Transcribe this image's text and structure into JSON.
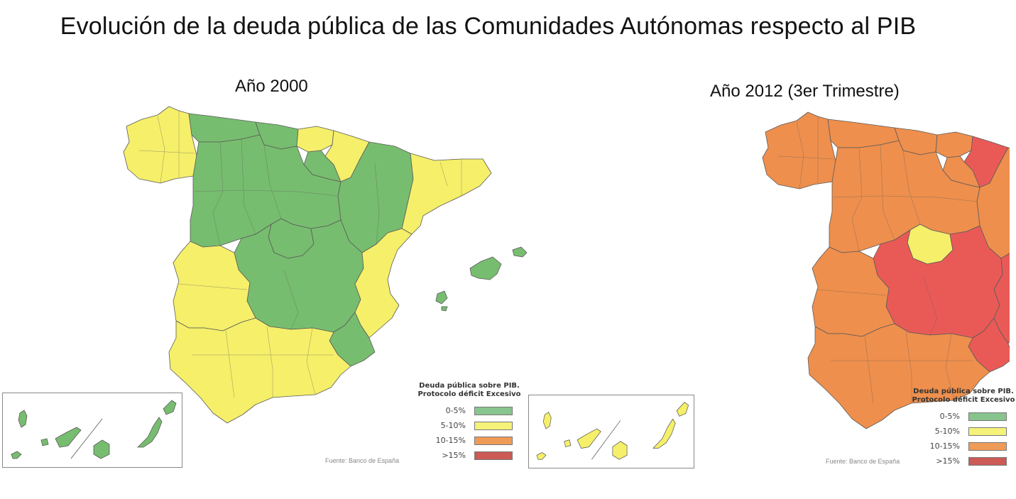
{
  "title": "Evolución de la deuda pública de las Comunidades Autónomas respecto al PIB",
  "colors": {
    "low": "#77bd6f",
    "mid": "#f5ef6a",
    "high": "#ee8f4d",
    "veryhigh": "#e95a57",
    "swatch_low": "#88c48d",
    "swatch_mid": "#f5f27a",
    "swatch_high": "#ef9b58",
    "swatch_veryhigh": "#cc5a55"
  },
  "maps": [
    {
      "title": "Año 2000",
      "source": "Fuente: Banco de España",
      "regions": {
        "galicia": "mid",
        "asturias": "low",
        "cantabria": "low",
        "pais_vasco": "mid",
        "navarra": "mid",
        "la_rioja": "low",
        "aragon": "low",
        "cataluna": "mid",
        "castilla_leon": "low",
        "madrid": "low",
        "castilla_la_mancha": "low",
        "valencia": "mid",
        "murcia": "low",
        "extremadura": "mid",
        "andalucia": "mid",
        "baleares": "low",
        "canarias": "low"
      }
    },
    {
      "title": "Año 2012 (3er Trimestre)",
      "source": "Fuente: Banco de España",
      "regions": {
        "galicia": "high",
        "asturias": "high",
        "cantabria": "high",
        "pais_vasco": "high",
        "navarra": "veryhigh",
        "la_rioja": "high",
        "aragon": "high",
        "cataluna": "veryhigh",
        "castilla_leon": "high",
        "madrid": "mid",
        "castilla_la_mancha": "veryhigh",
        "valencia": "veryhigh",
        "murcia": "veryhigh",
        "extremadura": "high",
        "andalucia": "high",
        "baleares": "veryhigh",
        "canarias": "mid"
      }
    }
  ],
  "legend": {
    "title_line1": "Deuda pública sobre PIB.",
    "title_line2": "Protocolo déficit Excesivo",
    "items": [
      {
        "label": "0-5%",
        "color_key": "swatch_low"
      },
      {
        "label": "5-10%",
        "color_key": "swatch_mid"
      },
      {
        "label": "10-15%",
        "color_key": "swatch_high"
      },
      {
        "label": ">15%",
        "color_key": "swatch_veryhigh"
      }
    ]
  }
}
